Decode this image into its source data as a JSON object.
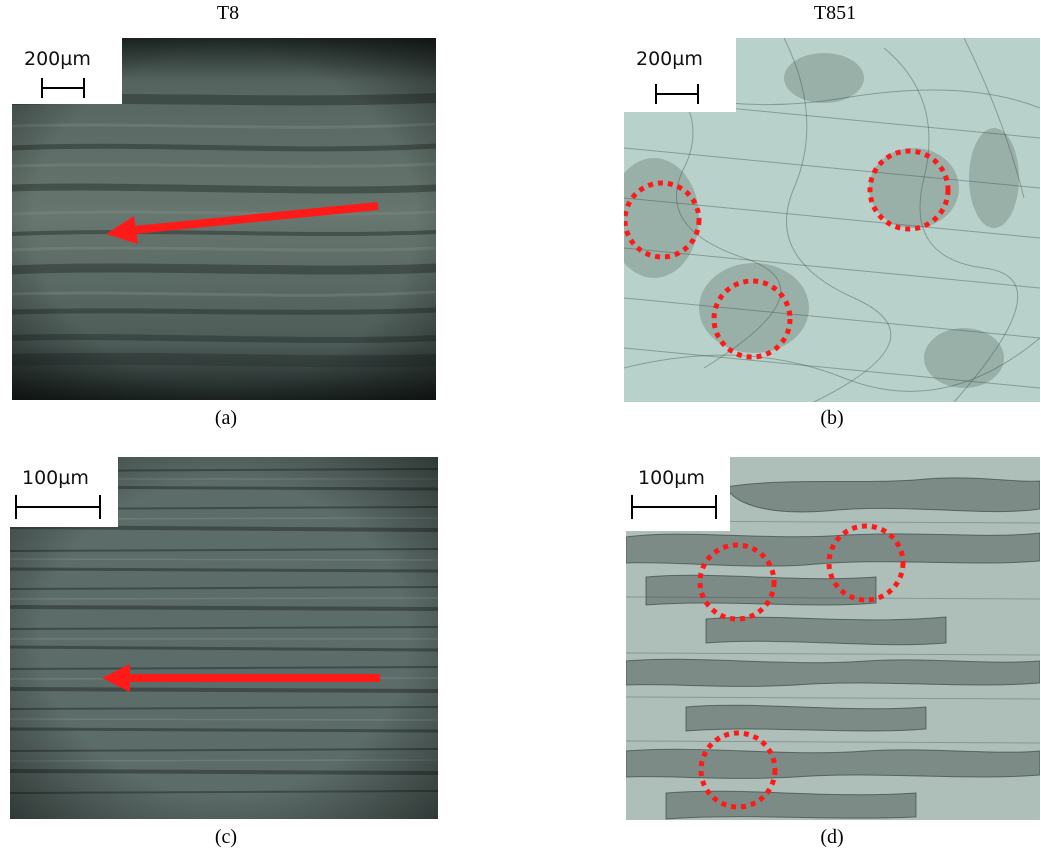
{
  "columns": {
    "left_title": "T8",
    "right_title": "T851"
  },
  "panels": [
    {
      "id": "a",
      "caption": "(a)",
      "scale_label": "200µm",
      "annotation": "red-arrow"
    },
    {
      "id": "b",
      "caption": "(b)",
      "scale_label": "200µm",
      "annotation": "red-dotted-circles"
    },
    {
      "id": "c",
      "caption": "(c)",
      "scale_label": "100µm",
      "annotation": "red-arrow"
    },
    {
      "id": "d",
      "caption": "(d)",
      "scale_label": "100µm",
      "annotation": "red-dotted-circles"
    }
  ],
  "colors": {
    "t8_surface": "#4f605c",
    "t851_surface_b": "#b8d2cb",
    "t851_surface_d": "#aebfb9",
    "annotation_red": "#ff1a1a"
  }
}
